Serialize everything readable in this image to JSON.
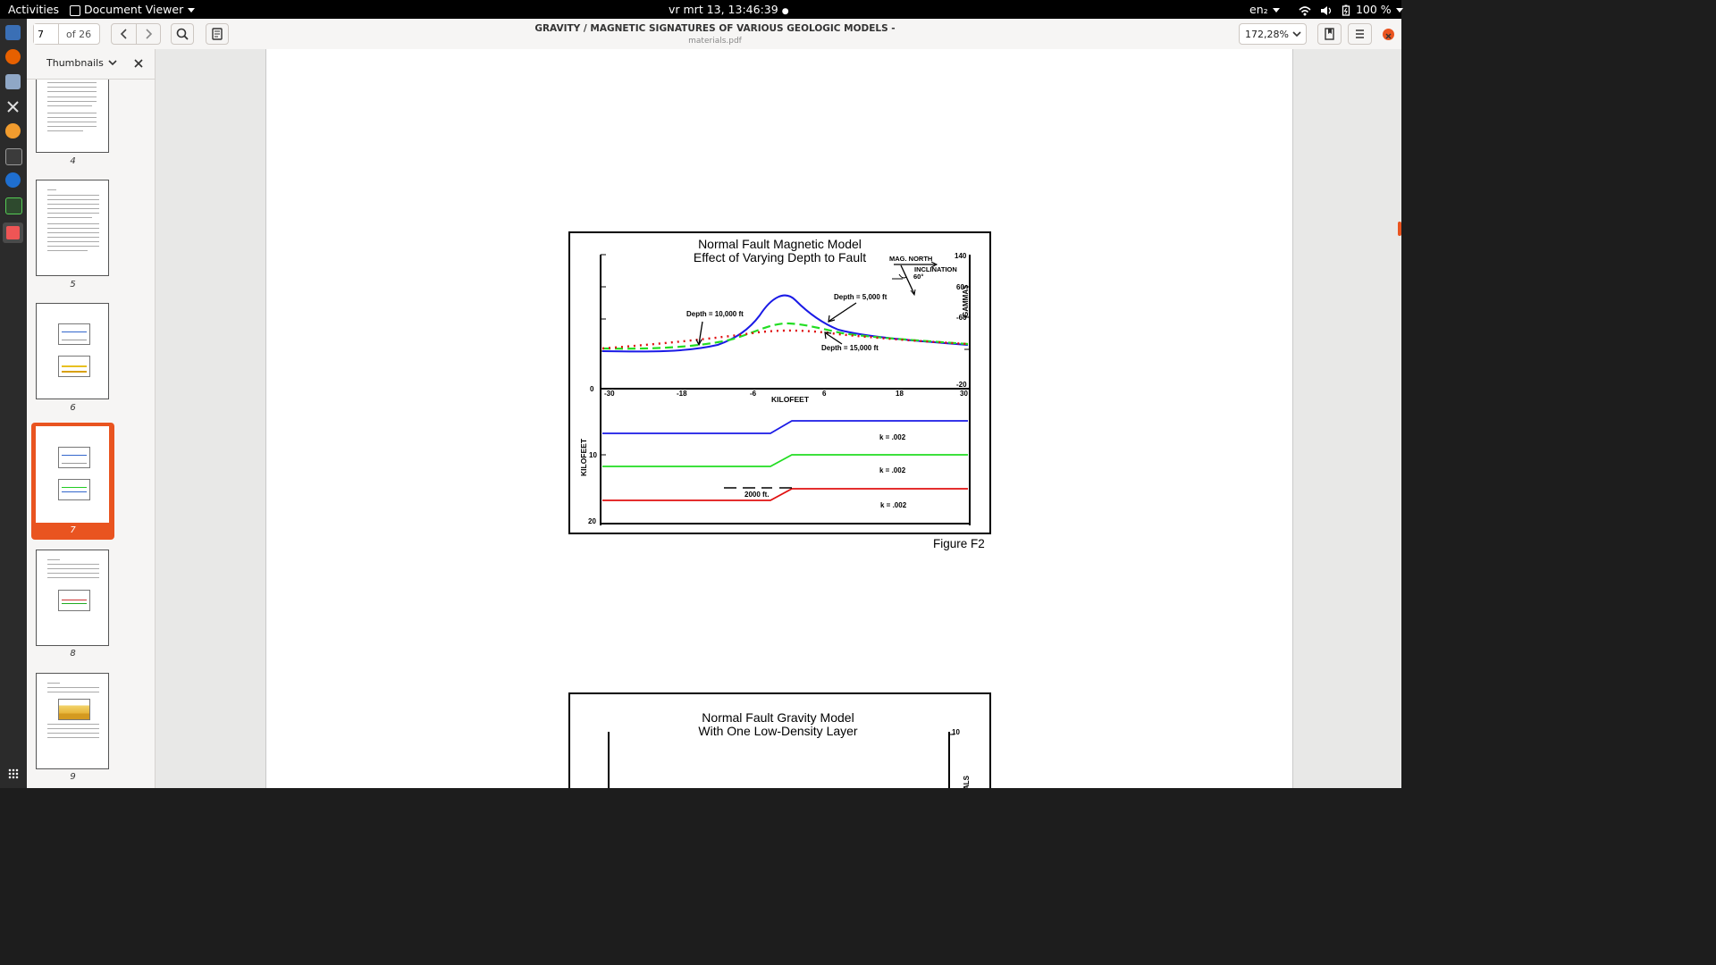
{
  "topbar": {
    "activities": "Activities",
    "app_name": "Document Viewer",
    "clock": "vr mrt 13, 13:46:39",
    "clock_dot": "●",
    "lang": "en₂",
    "battery": "100 %"
  },
  "toolbar": {
    "page_value": "7",
    "page_total": "of 26",
    "doc_title": "GRAVITY / MAGNETIC SIGNATURES  OF VARIOUS GEOLOGIC MODELS -",
    "doc_file": "materials.pdf",
    "zoom": "172,28%"
  },
  "sidebar": {
    "title": "Thumbnails",
    "pages": [
      "4",
      "5",
      "6",
      "7",
      "8",
      "9"
    ],
    "selected": "7"
  },
  "figure1": {
    "title1": "Normal Fault Magnetic Model",
    "title2": "Effect of Varying Depth to Fault",
    "mag_north": "MAG. NORTH",
    "inclination": "INCLINATION",
    "inc_deg": "60°",
    "y_right": [
      "140",
      "60",
      "-60",
      "-20"
    ],
    "y_right_label": "GAMMAS",
    "zero_label": "0",
    "x_ticks": [
      "-30",
      "-18",
      "-6",
      "6",
      "18",
      "30"
    ],
    "x_label": "KILOFEET",
    "depth_10000": "Depth = 10,000 ft",
    "depth_5000": "Depth = 5,000 ft",
    "depth_15000": "Depth = 15,000 ft",
    "k_vals": [
      "k = .002",
      "k = .002",
      "k = .002"
    ],
    "y_left_label": "KILOFEET",
    "y_left": [
      "10",
      "20"
    ],
    "throw": "2000 ft.",
    "caption": "Figure F2",
    "colors": {
      "depth5000": "#1a1ae6",
      "depth10000": "#22dd22",
      "depth15000": "#e01010"
    }
  },
  "figure2": {
    "title1": "Normal Fault Gravity Model",
    "title2": "With One Low-Density Layer",
    "y_right_top": "10",
    "y_right_label": "ALS"
  }
}
